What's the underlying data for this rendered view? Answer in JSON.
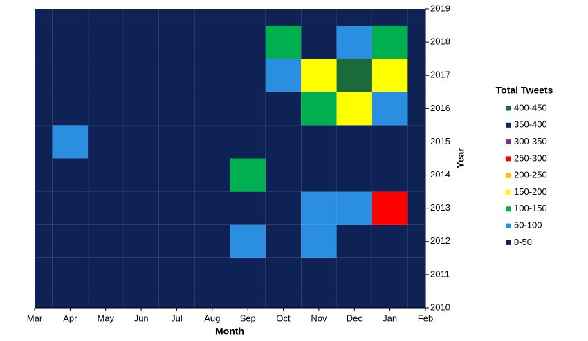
{
  "chart_data": {
    "type": "contour",
    "x_label": "Month",
    "y_label": "Year",
    "legend_title": "Total Tweets",
    "categories": [
      "Mar",
      "Apr",
      "May",
      "Jun",
      "Jul",
      "Aug",
      "Sep",
      "Oct",
      "Nov",
      "Dec",
      "Jan",
      "Feb"
    ],
    "ylim": [
      2010,
      2019
    ],
    "yticks": [
      2010,
      2011,
      2012,
      2013,
      2014,
      2015,
      2016,
      2017,
      2018,
      2019
    ],
    "values": [
      [
        5,
        5,
        5,
        5,
        5,
        5,
        5,
        5,
        5,
        5,
        5,
        5
      ],
      [
        5,
        5,
        5,
        5,
        5,
        5,
        5,
        10,
        10,
        10,
        10,
        10
      ],
      [
        10,
        10,
        5,
        5,
        5,
        5,
        70,
        10,
        60,
        20,
        10,
        10
      ],
      [
        10,
        10,
        5,
        5,
        5,
        5,
        10,
        15,
        80,
        90,
        270,
        15
      ],
      [
        5,
        5,
        5,
        5,
        10,
        10,
        110,
        10,
        10,
        10,
        30,
        20
      ],
      [
        5,
        70,
        10,
        10,
        10,
        10,
        10,
        10,
        20,
        20,
        30,
        10
      ],
      [
        10,
        10,
        10,
        10,
        10,
        10,
        10,
        20,
        120,
        150,
        90,
        10
      ],
      [
        10,
        10,
        10,
        10,
        10,
        10,
        10,
        60,
        150,
        420,
        150,
        20
      ],
      [
        10,
        10,
        5,
        10,
        5,
        10,
        10,
        120,
        40,
        60,
        130,
        20
      ],
      [
        10,
        10,
        10,
        10,
        10,
        10,
        10,
        20,
        20,
        10,
        30,
        10
      ]
    ],
    "bands": [
      {
        "label": "400-450",
        "min": 400,
        "max": 450,
        "color": "#1a6b3a"
      },
      {
        "label": "350-400",
        "min": 350,
        "max": 400,
        "color": "#0d2456"
      },
      {
        "label": "300-350",
        "min": 300,
        "max": 350,
        "color": "#7030a0"
      },
      {
        "label": "250-300",
        "min": 250,
        "max": 300,
        "color": "#ff0000"
      },
      {
        "label": "200-250",
        "min": 200,
        "max": 250,
        "color": "#ffc000"
      },
      {
        "label": "150-200",
        "min": 150,
        "max": 200,
        "color": "#ffff00"
      },
      {
        "label": "100-150",
        "min": 100,
        "max": 150,
        "color": "#00b050"
      },
      {
        "label": "50-100",
        "min": 50,
        "max": 100,
        "color": "#2a8fe0"
      },
      {
        "label": "0-50",
        "min": 0,
        "max": 50,
        "color": "#0f2256"
      }
    ]
  }
}
